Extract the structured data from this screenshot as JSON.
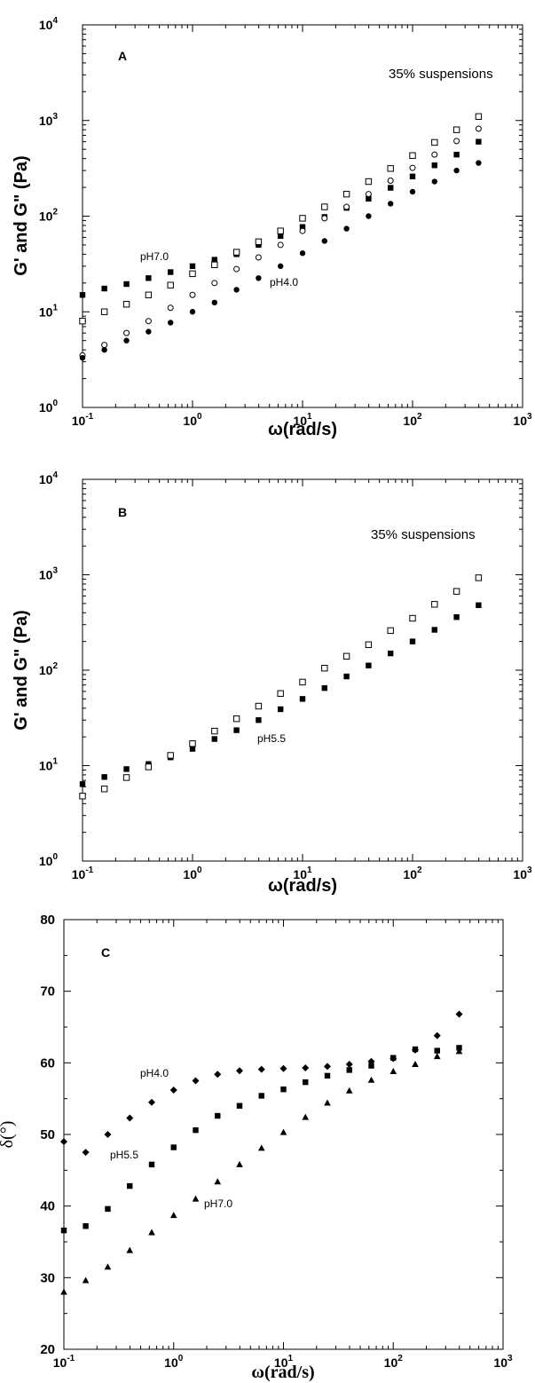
{
  "chart_data": [
    {
      "type": "scatter",
      "panel": "A",
      "xlabel": "ω(rad/s)",
      "ylabel": "G' and G\" (Pa)",
      "x_scale": "log",
      "y_scale": "log",
      "xlim": [
        0.1,
        1000
      ],
      "ylim": [
        1,
        10000
      ],
      "x_ticks": [
        {
          "base": "10",
          "exp": "-1",
          "v": 0.1
        },
        {
          "base": "10",
          "exp": "0",
          "v": 1
        },
        {
          "base": "10",
          "exp": "1",
          "v": 10
        },
        {
          "base": "10",
          "exp": "2",
          "v": 100
        },
        {
          "base": "10",
          "exp": "3",
          "v": 1000
        }
      ],
      "y_ticks": [
        {
          "base": "10",
          "exp": "0",
          "v": 1
        },
        {
          "base": "10",
          "exp": "1",
          "v": 10
        },
        {
          "base": "10",
          "exp": "2",
          "v": 100
        },
        {
          "base": "10",
          "exp": "3",
          "v": 1000
        },
        {
          "base": "10",
          "exp": "4",
          "v": 10000
        }
      ],
      "annotations": [
        {
          "text": "35% suspensions",
          "x": 60,
          "y": 1200
        },
        {
          "text": "pH7.0",
          "x": 0.4,
          "y": 36
        },
        {
          "text": "pH4.0",
          "x": 4.5,
          "y": 20
        }
      ],
      "series": [
        {
          "marker": "square-filled",
          "x": [
            0.1,
            0.158,
            0.251,
            0.398,
            0.631,
            1,
            1.585,
            2.512,
            3.981,
            6.31,
            10,
            15.85,
            25.12,
            39.81,
            63.1,
            100,
            158.5,
            251.2,
            398.1
          ],
          "y": [
            15,
            17.5,
            19.5,
            22.5,
            26,
            30,
            35,
            40,
            50,
            62,
            77,
            98,
            122,
            152,
            198,
            260,
            340,
            440,
            600
          ]
        },
        {
          "marker": "square-open",
          "x": [
            0.1,
            0.158,
            0.251,
            0.398,
            0.631,
            1,
            1.585,
            2.512,
            3.981,
            6.31,
            10,
            15.85,
            25.12,
            39.81,
            63.1,
            100,
            158.5,
            251.2,
            398.1
          ],
          "y": [
            8,
            10,
            12,
            15,
            19,
            25,
            31,
            42,
            54,
            70,
            95,
            125,
            170,
            230,
            315,
            430,
            590,
            800,
            1100
          ]
        },
        {
          "marker": "circle-open",
          "x": [
            0.1,
            0.158,
            0.251,
            0.398,
            0.631,
            1,
            1.585,
            2.512,
            3.981,
            6.31,
            10,
            15.85,
            25.12,
            39.81,
            63.1,
            100,
            158.5,
            251.2,
            398.1
          ],
          "y": [
            3.5,
            4.5,
            6,
            8,
            11,
            15,
            20,
            28,
            37,
            50,
            70,
            95,
            125,
            170,
            235,
            320,
            440,
            610,
            820
          ]
        },
        {
          "marker": "circle-filled",
          "x": [
            0.1,
            0.158,
            0.251,
            0.398,
            0.631,
            1,
            1.585,
            2.512,
            3.981,
            6.31,
            10,
            15.85,
            25.12,
            39.81,
            63.1,
            100,
            158.5,
            251.2,
            398.1
          ],
          "y": [
            3.3,
            4,
            5,
            6.2,
            7.7,
            10,
            12.5,
            17,
            22.5,
            30,
            41,
            55,
            74,
            100,
            135,
            180,
            230,
            300,
            360
          ]
        }
      ]
    },
    {
      "type": "scatter",
      "panel": "B",
      "xlabel": "ω(rad/s)",
      "ylabel": "G' and G\" (Pa)",
      "x_scale": "log",
      "y_scale": "log",
      "xlim": [
        0.1,
        1000
      ],
      "ylim": [
        1,
        10000
      ],
      "x_ticks": [
        {
          "base": "10",
          "exp": "-1",
          "v": 0.1
        },
        {
          "base": "10",
          "exp": "0",
          "v": 1
        },
        {
          "base": "10",
          "exp": "1",
          "v": 10
        },
        {
          "base": "10",
          "exp": "2",
          "v": 100
        },
        {
          "base": "10",
          "exp": "3",
          "v": 1000
        }
      ],
      "y_ticks": [
        {
          "base": "10",
          "exp": "0",
          "v": 1
        },
        {
          "base": "10",
          "exp": "1",
          "v": 10
        },
        {
          "base": "10",
          "exp": "2",
          "v": 100
        },
        {
          "base": "10",
          "exp": "3",
          "v": 1000
        },
        {
          "base": "10",
          "exp": "4",
          "v": 10000
        }
      ],
      "annotations": [
        {
          "text": "35% suspensions",
          "x": 40,
          "y": 1500
        },
        {
          "text": "pH5.5",
          "x": 4.5,
          "y": 19
        }
      ],
      "series": [
        {
          "marker": "square-filled",
          "x": [
            0.1,
            0.158,
            0.251,
            0.398,
            0.631,
            1,
            1.585,
            2.512,
            3.981,
            6.31,
            10,
            15.85,
            25.12,
            39.81,
            63.1,
            100,
            158.5,
            251.2,
            398.1
          ],
          "y": [
            6.4,
            7.6,
            9.2,
            10.4,
            12.2,
            15,
            19,
            23.5,
            30,
            39,
            50,
            65,
            86,
            112,
            150,
            200,
            265,
            360,
            480
          ]
        },
        {
          "marker": "square-open",
          "x": [
            0.1,
            0.158,
            0.251,
            0.398,
            0.631,
            1,
            1.585,
            2.512,
            3.981,
            6.31,
            10,
            15.85,
            25.12,
            39.81,
            63.1,
            100,
            158.5,
            251.2,
            398.1
          ],
          "y": [
            4.8,
            5.7,
            7.5,
            9.7,
            12.8,
            17,
            23,
            31,
            42,
            57,
            75,
            105,
            140,
            185,
            260,
            350,
            490,
            670,
            930
          ]
        }
      ]
    },
    {
      "type": "scatter",
      "panel": "C",
      "xlabel": "ω(rad/s)",
      "ylabel": "δ(°)",
      "x_scale": "log",
      "y_scale": "linear",
      "xlim": [
        0.1,
        1000
      ],
      "ylim": [
        20,
        80
      ],
      "x_ticks": [
        {
          "base": "10",
          "exp": "-1",
          "v": 0.1
        },
        {
          "base": "10",
          "exp": "0",
          "v": 1
        },
        {
          "base": "10",
          "exp": "1",
          "v": 10
        },
        {
          "base": "10",
          "exp": "2",
          "v": 100
        },
        {
          "base": "10",
          "exp": "3",
          "v": 1000
        }
      ],
      "y_ticks": [
        {
          "label": "20",
          "v": 20
        },
        {
          "label": "30",
          "v": 30
        },
        {
          "label": "40",
          "v": 40
        },
        {
          "label": "50",
          "v": 50
        },
        {
          "label": "60",
          "v": 60
        },
        {
          "label": "70",
          "v": 70
        },
        {
          "label": "80",
          "v": 80
        }
      ],
      "annotations": [
        {
          "text": "pH4.0",
          "x": 0.6,
          "y": 57.7
        },
        {
          "text": "pH5.5",
          "x": 0.2,
          "y": 45.3
        },
        {
          "text": "pH7.0",
          "x": 2.3,
          "y": 39.4
        }
      ],
      "series": [
        {
          "marker": "diamond-filled",
          "x": [
            0.1,
            0.158,
            0.251,
            0.398,
            0.631,
            1,
            1.585,
            2.512,
            3.981,
            6.31,
            10,
            15.85,
            25.12,
            39.81,
            63.1,
            100,
            158.5,
            251.2,
            398.1
          ],
          "y": [
            49,
            47.5,
            50,
            52.3,
            54.5,
            56.2,
            57.5,
            58.4,
            58.9,
            59.1,
            59.2,
            59.3,
            59.5,
            59.8,
            60.2,
            60.6,
            61.8,
            63.8,
            66.8
          ]
        },
        {
          "marker": "square-filled",
          "x": [
            0.1,
            0.158,
            0.251,
            0.398,
            0.631,
            1,
            1.585,
            2.512,
            3.981,
            6.31,
            10,
            15.85,
            25.12,
            39.81,
            63.1,
            100,
            158.5,
            251.2,
            398.1
          ],
          "y": [
            36.6,
            37.2,
            39.6,
            42.8,
            45.8,
            48.2,
            50.6,
            52.6,
            54,
            55.4,
            56.3,
            57.3,
            58.2,
            59,
            59.6,
            60.7,
            61.9,
            61.7,
            62.1
          ]
        },
        {
          "marker": "triangle-filled",
          "x": [
            0.1,
            0.158,
            0.251,
            0.398,
            0.631,
            1,
            1.585,
            2.512,
            3.981,
            6.31,
            10,
            15.85,
            25.12,
            39.81,
            63.1,
            100,
            158.5,
            251.2,
            398.1
          ],
          "y": [
            28,
            29.6,
            31.5,
            33.8,
            36.3,
            38.7,
            41,
            43.4,
            45.8,
            48.1,
            50.3,
            52.4,
            54.4,
            56.1,
            57.6,
            58.8,
            59.8,
            60.9,
            61.6
          ]
        }
      ]
    }
  ]
}
